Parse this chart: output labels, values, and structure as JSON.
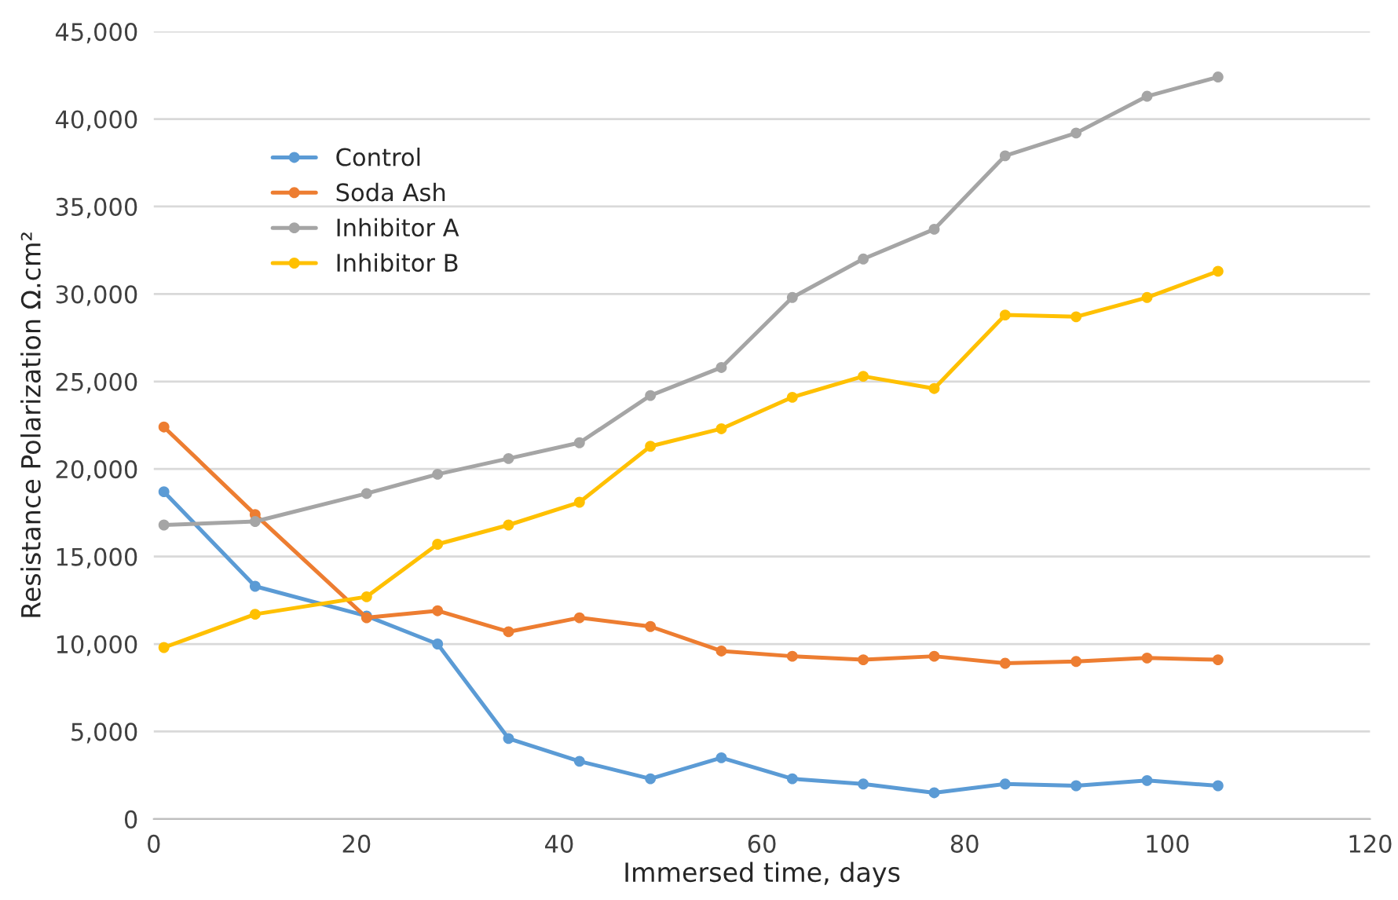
{
  "chart_data": {
    "type": "line",
    "xlabel": "Immersed time, days",
    "ylabel": "Resistance Polarization Ω.cm²",
    "x": [
      1,
      10,
      21,
      28,
      35,
      42,
      49,
      56,
      63,
      70,
      77,
      84,
      91,
      98,
      105
    ],
    "series": [
      {
        "name": "Control",
        "color": "#5b9bd5",
        "values": [
          18700,
          13300,
          11600,
          10000,
          4600,
          3300,
          2300,
          3500,
          2300,
          2000,
          1500,
          2000,
          1900,
          2200,
          1900
        ]
      },
      {
        "name": "Soda Ash",
        "color": "#ed7d31",
        "values": [
          22400,
          17400,
          11500,
          11900,
          10700,
          11500,
          11000,
          9600,
          9300,
          9100,
          9300,
          8900,
          9000,
          9200,
          9100
        ]
      },
      {
        "name": "Inhibitor A",
        "color": "#a5a5a5",
        "values": [
          16800,
          17000,
          18600,
          19700,
          20600,
          21500,
          24200,
          25800,
          29800,
          32000,
          33700,
          37900,
          39200,
          41300,
          42400
        ]
      },
      {
        "name": "Inhibitor B",
        "color": "#ffc000",
        "values": [
          9800,
          11700,
          12700,
          15700,
          16800,
          18100,
          21300,
          22300,
          24100,
          25300,
          24600,
          28800,
          28700,
          29800,
          31300
        ]
      }
    ],
    "xlim": [
      0,
      120
    ],
    "xticks": [
      0,
      20,
      40,
      60,
      80,
      100,
      120
    ],
    "ylim": [
      0,
      45000
    ],
    "yticks": [
      0,
      {
        "value": 5000,
        "label": "5,000"
      },
      {
        "value": 10000,
        "label": "10,000"
      },
      {
        "value": 15000,
        "label": "15,000"
      },
      {
        "value": 20000,
        "label": "20,000"
      },
      {
        "value": 25000,
        "label": "25,000"
      },
      {
        "value": 30000,
        "label": "30,000"
      },
      {
        "value": 35000,
        "label": "35,000"
      },
      {
        "value": 40000,
        "label": "40,000"
      },
      {
        "value": 45000,
        "label": "45,000"
      }
    ],
    "grid": "y",
    "legend": "top left",
    "marker": "circle",
    "line_style": "solid"
  }
}
